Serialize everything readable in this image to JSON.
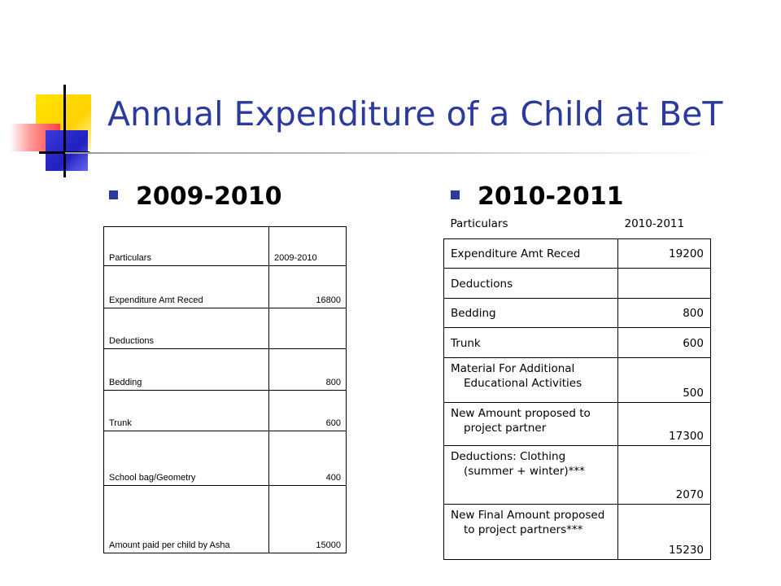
{
  "slide": {
    "title": "Annual Expenditure of a Child at BeT",
    "left_heading": "2009-2010",
    "right_heading": "2010-2011"
  },
  "table_2009": {
    "header": [
      "Particulars",
      "2009-2010"
    ],
    "rows": [
      [
        "Expenditure Amt Reced",
        "16800"
      ],
      [
        "Deductions",
        ""
      ],
      [
        "Bedding",
        "800"
      ],
      [
        "Trunk",
        "600"
      ],
      [
        "School bag/Geometry",
        "400"
      ],
      [
        "Amount paid per child by Asha",
        "15000"
      ]
    ]
  },
  "table_2010": {
    "header": [
      "Particulars",
      "2010-2011"
    ],
    "rows": [
      [
        "Expenditure Amt Reced",
        "19200"
      ],
      [
        "Deductions",
        ""
      ],
      [
        "Bedding",
        "800"
      ],
      [
        "Trunk",
        "600"
      ],
      [
        "Material For Additional Educational Activities",
        "500"
      ],
      [
        "New Amount proposed to project partner",
        "17300"
      ],
      [
        "Deductions: Clothing (summer + winter)***",
        "2070"
      ],
      [
        "New Final Amount proposed to project partners***",
        "15230"
      ]
    ]
  }
}
